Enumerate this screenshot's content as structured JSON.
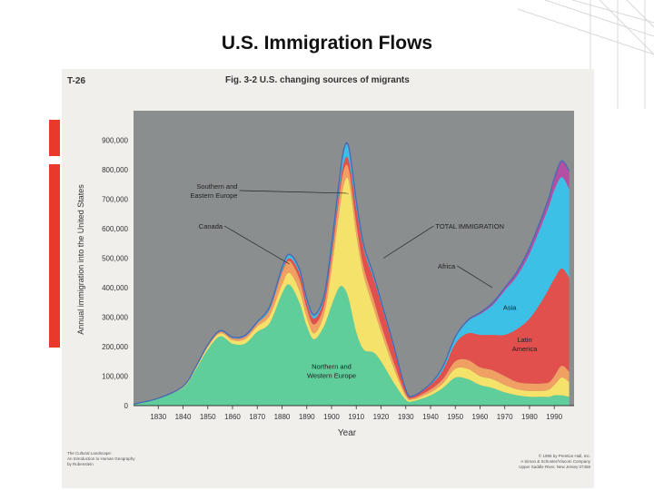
{
  "slide": {
    "title": "U.S. Immigration Flows"
  },
  "figure": {
    "plate_id": "T-26",
    "caption": "Fig. 3-2 U.S. changing sources of migrants",
    "credit_left": [
      "The Cultural Landscape:",
      "An Introduction to Human Geography",
      "by Rubenstein"
    ],
    "credit_right": [
      "© 1996 by Prentice Hall, Inc.",
      "A Simon & Schuster/Viacom Company",
      "Upper Saddle River, New Jersey 07458"
    ]
  },
  "chart_data": {
    "type": "area",
    "stacked": true,
    "title": "",
    "xlabel": "Year",
    "ylabel": "Annual immigration into the United States",
    "xlim": [
      1820,
      1998
    ],
    "ylim": [
      0,
      1000000
    ],
    "x_ticks": [
      1830,
      1840,
      1850,
      1860,
      1870,
      1880,
      1890,
      1900,
      1910,
      1920,
      1930,
      1940,
      1950,
      1960,
      1970,
      1980,
      1990
    ],
    "x_tick_labels": [
      "1830",
      "1840",
      "1850",
      "1860",
      "1870",
      "1880",
      "1890",
      "1900",
      "1910",
      "1920",
      "1930",
      "1940",
      "1950",
      "1960",
      "1970",
      "1980",
      "1990"
    ],
    "y_ticks": [
      0,
      100000,
      200000,
      300000,
      400000,
      500000,
      600000,
      700000,
      800000,
      900000
    ],
    "y_tick_labels": [
      "0",
      "100,000",
      "200,000",
      "300,000",
      "400,000",
      "500,000",
      "600,000",
      "700,000",
      "800,000",
      "900,000"
    ],
    "grid": false,
    "x": [
      1820,
      1830,
      1840,
      1845,
      1850,
      1855,
      1860,
      1865,
      1870,
      1875,
      1880,
      1883,
      1887,
      1890,
      1893,
      1897,
      1900,
      1903,
      1905,
      1907,
      1910,
      1913,
      1917,
      1920,
      1925,
      1930,
      1933,
      1940,
      1945,
      1950,
      1955,
      1960,
      1965,
      1970,
      1975,
      1980,
      1985,
      1988,
      1990,
      1993,
      1996
    ],
    "series": [
      {
        "name": "Northern and Western Europe",
        "color": "#5fce9a",
        "values": [
          5000,
          25000,
          60000,
          120000,
          190000,
          235000,
          210000,
          210000,
          250000,
          280000,
          380000,
          410000,
          350000,
          270000,
          225000,
          270000,
          340000,
          400000,
          400000,
          360000,
          250000,
          190000,
          180000,
          150000,
          80000,
          20000,
          15000,
          35000,
          60000,
          95000,
          90000,
          70000,
          60000,
          45000,
          35000,
          30000,
          30000,
          30000,
          35000,
          35000,
          30000
        ]
      },
      {
        "name": "Canada",
        "color": "#f4e26a",
        "values": [
          0,
          0,
          3000,
          5000,
          8000,
          10000,
          12000,
          15000,
          18000,
          25000,
          30000,
          40000,
          40000,
          30000,
          20000,
          40000,
          120000,
          250000,
          350000,
          400000,
          330000,
          250000,
          150000,
          100000,
          50000,
          12000,
          6000,
          10000,
          15000,
          30000,
          35000,
          30000,
          30000,
          25000,
          20000,
          20000,
          20000,
          25000,
          35000,
          60000,
          50000
        ]
      },
      {
        "name": "Southern and Eastern Europe",
        "color": "#f0a062",
        "values": [
          0,
          0,
          2000,
          3000,
          5000,
          5000,
          6000,
          8000,
          10000,
          20000,
          40000,
          40000,
          40000,
          30000,
          30000,
          30000,
          40000,
          50000,
          50000,
          40000,
          40000,
          30000,
          30000,
          25000,
          20000,
          8000,
          5000,
          10000,
          15000,
          25000,
          30000,
          30000,
          30000,
          30000,
          25000,
          25000,
          25000,
          25000,
          30000,
          40000,
          35000
        ]
      },
      {
        "name": "Latin America",
        "color": "#e2504e",
        "values": [
          0,
          0,
          0,
          0,
          1000,
          1000,
          1000,
          1000,
          1000,
          2000,
          5000,
          10000,
          20000,
          20000,
          20000,
          20000,
          20000,
          25000,
          25000,
          30000,
          50000,
          60000,
          70000,
          70000,
          50000,
          10000,
          5000,
          15000,
          30000,
          60000,
          90000,
          110000,
          120000,
          140000,
          180000,
          220000,
          280000,
          320000,
          330000,
          330000,
          320000
        ]
      },
      {
        "name": "Asia",
        "color": "#3cc0e6",
        "values": [
          0,
          0,
          0,
          1000,
          2000,
          3000,
          3000,
          4000,
          5000,
          8000,
          10000,
          10000,
          10000,
          10000,
          10000,
          10000,
          20000,
          25000,
          40000,
          40000,
          20000,
          10000,
          8000,
          5000,
          5000,
          2000,
          1000,
          3000,
          10000,
          20000,
          40000,
          70000,
          100000,
          150000,
          180000,
          220000,
          260000,
          280000,
          300000,
          310000,
          300000
        ]
      },
      {
        "name": "Africa",
        "color": "#b54fa3",
        "values": [
          0,
          0,
          0,
          0,
          0,
          0,
          0,
          0,
          0,
          0,
          3000,
          3000,
          3000,
          3000,
          3000,
          3000,
          3000,
          5000,
          5000,
          5000,
          5000,
          5000,
          5000,
          5000,
          3000,
          2000,
          1000,
          1000,
          2000,
          3000,
          4000,
          5000,
          8000,
          10000,
          15000,
          20000,
          25000,
          30000,
          40000,
          55000,
          60000
        ]
      }
    ],
    "total_line": {
      "name": "TOTAL IMMIGRATION",
      "color": "#4a6ab3"
    },
    "annotations": [
      {
        "text": "Southern and\nEastern Europe",
        "series": "Southern and Eastern Europe",
        "x": 1907,
        "y": 720000,
        "label_x": 1862,
        "label_y": 720000
      },
      {
        "text": "Canada",
        "series": "Canada",
        "x": 1883,
        "y": 480000,
        "label_x": 1856,
        "label_y": 600000
      },
      {
        "text": "TOTAL IMMIGRATION",
        "series": "total",
        "x": 1921,
        "y": 500000,
        "label_x": 1942,
        "label_y": 600000
      },
      {
        "text": "Africa",
        "series": "Africa",
        "x": 1965,
        "y": 400000,
        "label_x": 1950,
        "label_y": 465000
      },
      {
        "text": "Asia",
        "series": "Asia",
        "x": 1972,
        "y": 325000,
        "label_x": 1972,
        "label_y": 325000
      },
      {
        "text": "Latin\nAmerica",
        "series": "Latin America",
        "x": 1978,
        "y": 200000,
        "label_x": 1978,
        "label_y": 200000
      },
      {
        "text": "Northern and\nWestern Europe",
        "series": "Northern and Western Europe",
        "x": 1900,
        "y": 110000,
        "label_x": 1900,
        "label_y": 110000
      }
    ]
  }
}
